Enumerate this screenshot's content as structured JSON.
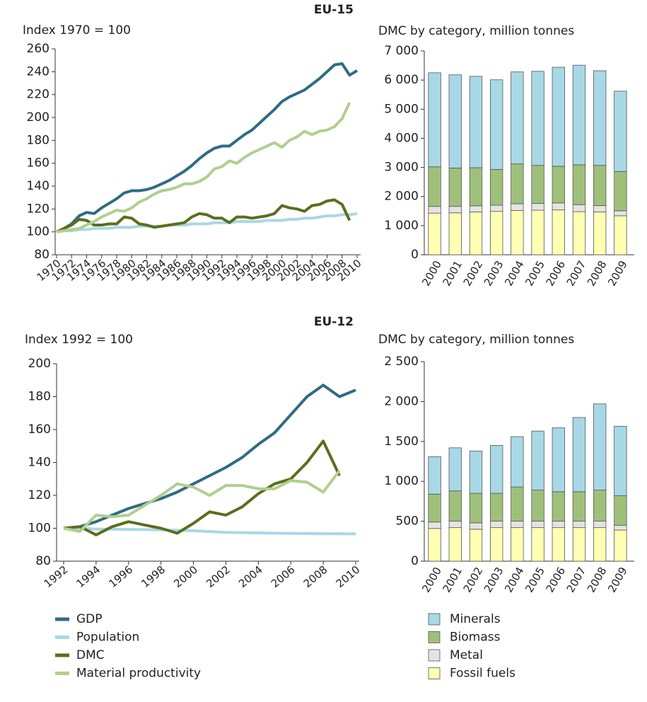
{
  "headings": [
    "EU-15",
    "EU-12"
  ],
  "chart_data": [
    {
      "type": "line",
      "ylabel": "Index 1970 = 100",
      "x": [
        1970,
        1971,
        1972,
        1973,
        1974,
        1975,
        1976,
        1977,
        1978,
        1979,
        1980,
        1981,
        1982,
        1983,
        1984,
        1985,
        1986,
        1987,
        1988,
        1989,
        1990,
        1991,
        1992,
        1993,
        1994,
        1995,
        1996,
        1997,
        1998,
        1999,
        2000,
        2001,
        2002,
        2003,
        2004,
        2005,
        2006,
        2007,
        2008,
        2009,
        2010
      ],
      "series": [
        {
          "name": "GDP",
          "color": "#2f6b85",
          "values": [
            100,
            103,
            107,
            114,
            117,
            116,
            121,
            125,
            129,
            134,
            136,
            136,
            137,
            139,
            142,
            145,
            149,
            153,
            158,
            164,
            169,
            173,
            175,
            175,
            180,
            185,
            189,
            195,
            201,
            207,
            214,
            218,
            221,
            224,
            229,
            234,
            240,
            246,
            247,
            237,
            241
          ]
        },
        {
          "name": "Population",
          "color": "#a8d8e6",
          "values": [
            100,
            101,
            101,
            102,
            102,
            103,
            103,
            103,
            104,
            104,
            104,
            105,
            105,
            105,
            105,
            106,
            106,
            106,
            107,
            107,
            107,
            108,
            108,
            108,
            109,
            109,
            109,
            109,
            110,
            110,
            110,
            111,
            111,
            112,
            112,
            113,
            114,
            114,
            115,
            115,
            116
          ]
        },
        {
          "name": "DMC",
          "color": "#5b6e1e",
          "values": [
            100,
            103,
            106,
            111,
            110,
            106,
            106,
            107,
            107,
            113,
            112,
            107,
            106,
            104,
            105,
            106,
            107,
            108,
            113,
            116,
            115,
            112,
            112,
            108,
            113,
            113,
            112,
            113,
            114,
            116,
            123,
            121,
            120,
            118,
            123,
            124,
            127,
            128,
            124,
            110,
            null
          ]
        },
        {
          "name": "Material productivity",
          "color": "#b0cf8f",
          "values": [
            100,
            101,
            102,
            103,
            106,
            109,
            113,
            116,
            119,
            118,
            121,
            126,
            129,
            133,
            136,
            137,
            139,
            142,
            142,
            144,
            148,
            155,
            157,
            162,
            160,
            165,
            169,
            172,
            175,
            178,
            174,
            180,
            183,
            188,
            185,
            188,
            189,
            192,
            199,
            213,
            null
          ]
        }
      ],
      "xlim": [
        1970,
        2010
      ],
      "xticks": [
        1970,
        1972,
        1974,
        1976,
        1978,
        1980,
        1982,
        1984,
        1986,
        1988,
        1990,
        1992,
        1994,
        1996,
        1998,
        2000,
        2002,
        2004,
        2006,
        2008,
        2010
      ],
      "ylim": [
        80,
        260
      ],
      "yticks": [
        80,
        100,
        120,
        140,
        160,
        180,
        200,
        220,
        240,
        260
      ]
    },
    {
      "type": "bar",
      "ylabel": "DMC by category, million tonnes",
      "categories": [
        "2000",
        "2001",
        "2002",
        "2003",
        "2004",
        "2005",
        "2006",
        "2007",
        "2008",
        "2009"
      ],
      "series": [
        {
          "name": "Fossil fuels",
          "color": "#ffffb3",
          "values": [
            1430,
            1440,
            1470,
            1490,
            1520,
            1530,
            1540,
            1480,
            1470,
            1340
          ]
        },
        {
          "name": "Metal",
          "color": "#e4e4e4",
          "values": [
            230,
            220,
            210,
            210,
            230,
            230,
            240,
            240,
            220,
            170
          ]
        },
        {
          "name": "Biomass",
          "color": "#9fc07a",
          "values": [
            1360,
            1320,
            1310,
            1230,
            1370,
            1310,
            1260,
            1370,
            1380,
            1350
          ]
        },
        {
          "name": "Minerals",
          "color": "#a8d8e6",
          "values": [
            3230,
            3200,
            3140,
            3080,
            3160,
            3230,
            3400,
            3420,
            3250,
            2760
          ]
        }
      ],
      "ylim": [
        0,
        7000
      ],
      "yticks": [
        0,
        {
          "value": 1000,
          "label": "1 000"
        },
        {
          "value": 2000,
          "label": "2 000"
        },
        {
          "value": 3000,
          "label": "3 000"
        },
        {
          "value": 4000,
          "label": "4 000"
        },
        {
          "value": 5000,
          "label": "5 000"
        },
        {
          "value": 6000,
          "label": "6 000"
        },
        {
          "value": 7000,
          "label": "7 000"
        }
      ]
    },
    {
      "type": "line",
      "ylabel": "Index 1992 = 100",
      "x": [
        1992,
        1993,
        1994,
        1995,
        1996,
        1997,
        1998,
        1999,
        2000,
        2001,
        2002,
        2003,
        2004,
        2005,
        2006,
        2007,
        2008,
        2009,
        2010
      ],
      "series": [
        {
          "values": [
            100,
            101,
            104,
            108,
            112,
            115,
            118,
            122,
            127,
            132,
            137,
            143,
            151,
            158,
            169,
            180,
            187,
            180,
            184
          ]
        },
        {
          "values": [
            100,
            100,
            99.5,
            99.5,
            99.3,
            99.2,
            99,
            98.8,
            98.5,
            98,
            97.5,
            97.3,
            97.2,
            97,
            96.9,
            96.8,
            96.7,
            96.7,
            96.6
          ]
        },
        {
          "values": [
            100,
            101,
            96,
            101,
            104,
            102,
            100,
            97,
            103,
            110,
            108,
            113,
            121,
            127,
            130,
            140,
            153,
            132,
            null
          ]
        },
        {
          "values": [
            100,
            98,
            108,
            107,
            108,
            114,
            120,
            127,
            125,
            120,
            126,
            126,
            124,
            124,
            129,
            128,
            122,
            135,
            null
          ]
        }
      ],
      "xlim": [
        1992,
        2010
      ],
      "xticks": [
        1992,
        1994,
        1996,
        1998,
        2000,
        2002,
        2004,
        2006,
        2008,
        2010
      ],
      "ylim": [
        80,
        200
      ],
      "yticks": [
        80,
        100,
        120,
        140,
        160,
        180,
        200
      ]
    },
    {
      "type": "bar",
      "ylabel": "DMC by category, million tonnes",
      "categories": [
        "2000",
        "2001",
        "2002",
        "2003",
        "2004",
        "2005",
        "2006",
        "2007",
        "2008",
        "2009"
      ],
      "series": [
        {
          "values": [
            410,
            420,
            400,
            420,
            420,
            420,
            420,
            420,
            420,
            390
          ]
        },
        {
          "values": [
            80,
            80,
            80,
            80,
            80,
            80,
            80,
            80,
            80,
            60
          ]
        },
        {
          "values": [
            350,
            380,
            370,
            350,
            430,
            390,
            370,
            370,
            390,
            370
          ]
        },
        {
          "values": [
            470,
            540,
            530,
            600,
            630,
            740,
            800,
            930,
            1080,
            870
          ]
        }
      ],
      "ylim": [
        0,
        2500
      ],
      "yticks": [
        0,
        500,
        {
          "value": 1000,
          "label": "1 000"
        },
        {
          "value": 1500,
          "label": "1 500"
        },
        {
          "value": 2000,
          "label": "2 000"
        },
        {
          "value": 2500,
          "label": "2 500"
        }
      ]
    }
  ]
}
